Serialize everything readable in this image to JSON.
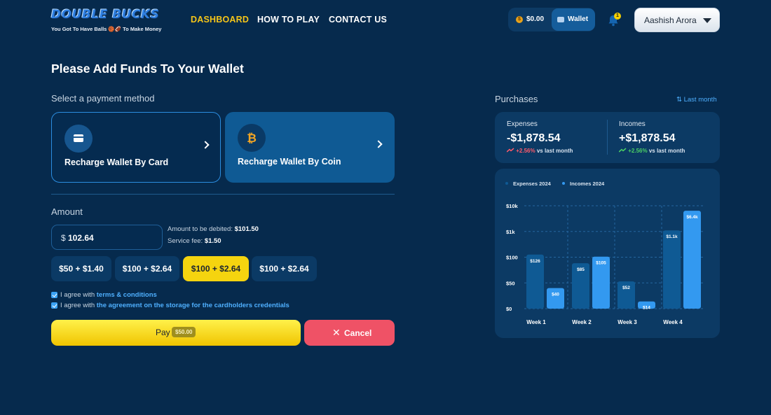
{
  "brand": {
    "name": "DOUBLE BUCKS",
    "tagline": "You Got To Have Balls 🏀🏈 To Make Money"
  },
  "nav": {
    "dashboard": "DASHBOARD",
    "how_to_play": "HOW TO PLAY",
    "contact_us": "CONTACT US"
  },
  "header": {
    "balance": "$0.00",
    "wallet_label": "Wallet",
    "notification_count": "1",
    "user_name": "Aashish Arora"
  },
  "page": {
    "title": "Please Add Funds To Your Wallet",
    "payment_method_label": "Select a payment method",
    "amount_label": "Amount"
  },
  "methods": {
    "card": "Recharge Wallet By Card",
    "coin": "Recharge Wallet By Coin"
  },
  "amount": {
    "currency": "$",
    "value": "102.64",
    "debited_label": "Amount to be debited:",
    "debited_value": "$101.50",
    "fee_label": "Service fee:",
    "fee_value": "$1.50"
  },
  "options": [
    "$50 + $1.40",
    "$100 + $2.64",
    "$100 + $2.64",
    "$100 + $2.64"
  ],
  "agreements": {
    "terms_prefix": "I agree with",
    "terms_link": "terms & conditions",
    "storage_prefix": "I agree with",
    "storage_link": "the agreement on the storage for the cardholders credentials"
  },
  "actions": {
    "pay": "Pay",
    "pay_amount": "$50.00",
    "cancel": "Cancel"
  },
  "purchases": {
    "title": "Purchases",
    "period": "Last month",
    "expenses_label": "Expenses",
    "expenses_value": "-$1,878.54",
    "expenses_change": "+2.56%",
    "incomes_label": "Incomes",
    "incomes_value": "+$1,878.54",
    "incomes_change": "+2.56%",
    "vs_label": "vs last month"
  },
  "colors": {
    "expenses": "#0f5a94",
    "incomes": "#3399f0",
    "accent": "#f5d40f"
  },
  "chart_data": {
    "type": "bar",
    "categories": [
      "Week 1",
      "Week 2",
      "Week 3",
      "Week 4"
    ],
    "series": [
      {
        "name": "Expenses 2024",
        "values": [
          126,
          85,
          52,
          1100
        ],
        "labels": [
          "$126",
          "$85",
          "$52",
          "$1.1k"
        ]
      },
      {
        "name": "Incomes 2024",
        "values": [
          40,
          105,
          14,
          6400
        ],
        "labels": [
          "$40",
          "$105",
          "$14",
          "$6.4k"
        ]
      }
    ],
    "y_ticks": [
      "$10k",
      "$1k",
      "$100",
      "$50",
      "$0"
    ],
    "legend": "top-left",
    "grid": true
  }
}
